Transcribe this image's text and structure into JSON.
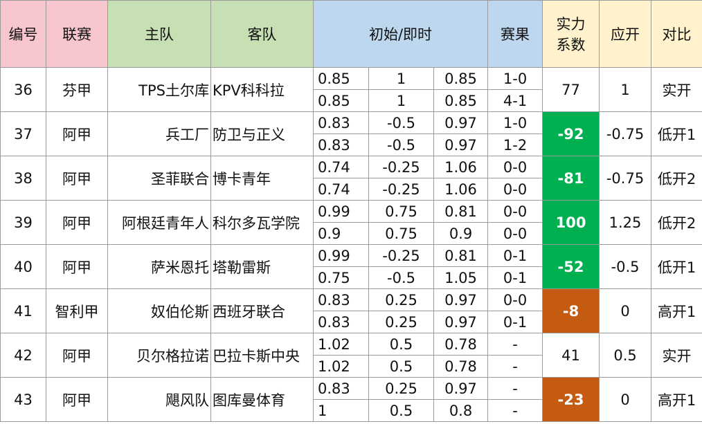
{
  "columns": {
    "no": "编号",
    "league": "联赛",
    "home": "主队",
    "away": "客队",
    "odds": "初始/即时",
    "result": "赛果",
    "strength_line1": "实力",
    "strength_line2": "系数",
    "expected": "应开",
    "compare": "对比"
  },
  "colors": {
    "header_pink": "#f7c6ce",
    "header_green": "#c6e0b4",
    "header_blue": "#bdd7ee",
    "header_cream": "#fff2cc",
    "strength_positive": "#00b050",
    "strength_negative": "#c55a11"
  },
  "rows": [
    {
      "no": "36",
      "league": "芬甲",
      "home": "TPS土尔库",
      "away": "KPV科科拉",
      "init": [
        "0.85",
        "1",
        "0.85"
      ],
      "live": [
        "0.85",
        "1",
        "0.85"
      ],
      "result1": "1-0",
      "result2": "4-1",
      "strength": "77",
      "strength_style": "plain",
      "expected": "1",
      "compare": "实开"
    },
    {
      "no": "37",
      "league": "阿甲",
      "home": "兵工厂",
      "away": "防卫与正义",
      "init": [
        "0.83",
        "-0.5",
        "0.97"
      ],
      "live": [
        "0.83",
        "-0.5",
        "0.97"
      ],
      "result1": "1-0",
      "result2": "1-2",
      "strength": "-92",
      "strength_style": "positive",
      "expected": "-0.75",
      "compare": "低开1"
    },
    {
      "no": "38",
      "league": "阿甲",
      "home": "圣菲联合",
      "away": "博卡青年",
      "init": [
        "0.74",
        "-0.25",
        "1.06"
      ],
      "live": [
        "0.74",
        "-0.25",
        "1.06"
      ],
      "result1": "0-0",
      "result2": "0-0",
      "strength": "-81",
      "strength_style": "positive",
      "expected": "-0.75",
      "compare": "低开2"
    },
    {
      "no": "39",
      "league": "阿甲",
      "home": "阿根廷青年人",
      "away": "科尔多瓦学院",
      "init": [
        "0.99",
        "0.75",
        "0.81"
      ],
      "live": [
        "0.9",
        "0.75",
        "0.9"
      ],
      "result1": "0-0",
      "result2": "0-0",
      "strength": "100",
      "strength_style": "positive",
      "expected": "1.25",
      "compare": "低开2"
    },
    {
      "no": "40",
      "league": "阿甲",
      "home": "萨米恩托",
      "away": "塔勒雷斯",
      "init": [
        "0.99",
        "-0.25",
        "0.81"
      ],
      "live": [
        "0.75",
        "-0.5",
        "1.05"
      ],
      "result1": "0-1",
      "result2": "0-1",
      "strength": "-52",
      "strength_style": "positive",
      "expected": "-0.5",
      "compare": "低开1"
    },
    {
      "no": "41",
      "league": "智利甲",
      "home": "奴伯伦斯",
      "away": "西班牙联合",
      "init": [
        "0.83",
        "0.25",
        "0.97"
      ],
      "live": [
        "0.83",
        "0.25",
        "0.97"
      ],
      "result1": "0-0",
      "result2": "0-1",
      "strength": "-8",
      "strength_style": "negative",
      "expected": "0",
      "compare": "高开1"
    },
    {
      "no": "42",
      "league": "阿甲",
      "home": "贝尔格拉诺",
      "away": "巴拉卡斯中央",
      "init": [
        "1.02",
        "0.5",
        "0.78"
      ],
      "live": [
        "1.02",
        "0.5",
        "0.78"
      ],
      "result1": "-",
      "result2": "-",
      "strength": "41",
      "strength_style": "plain",
      "expected": "0.5",
      "compare": "实开"
    },
    {
      "no": "43",
      "league": "阿甲",
      "home": "飓风队",
      "away": "图库曼体育",
      "init": [
        "0.83",
        "0.25",
        "0.97"
      ],
      "live": [
        "1",
        "0.5",
        "0.8"
      ],
      "result1": "-",
      "result2": "-",
      "strength": "-23",
      "strength_style": "negative",
      "expected": "0",
      "compare": "高开1"
    }
  ]
}
